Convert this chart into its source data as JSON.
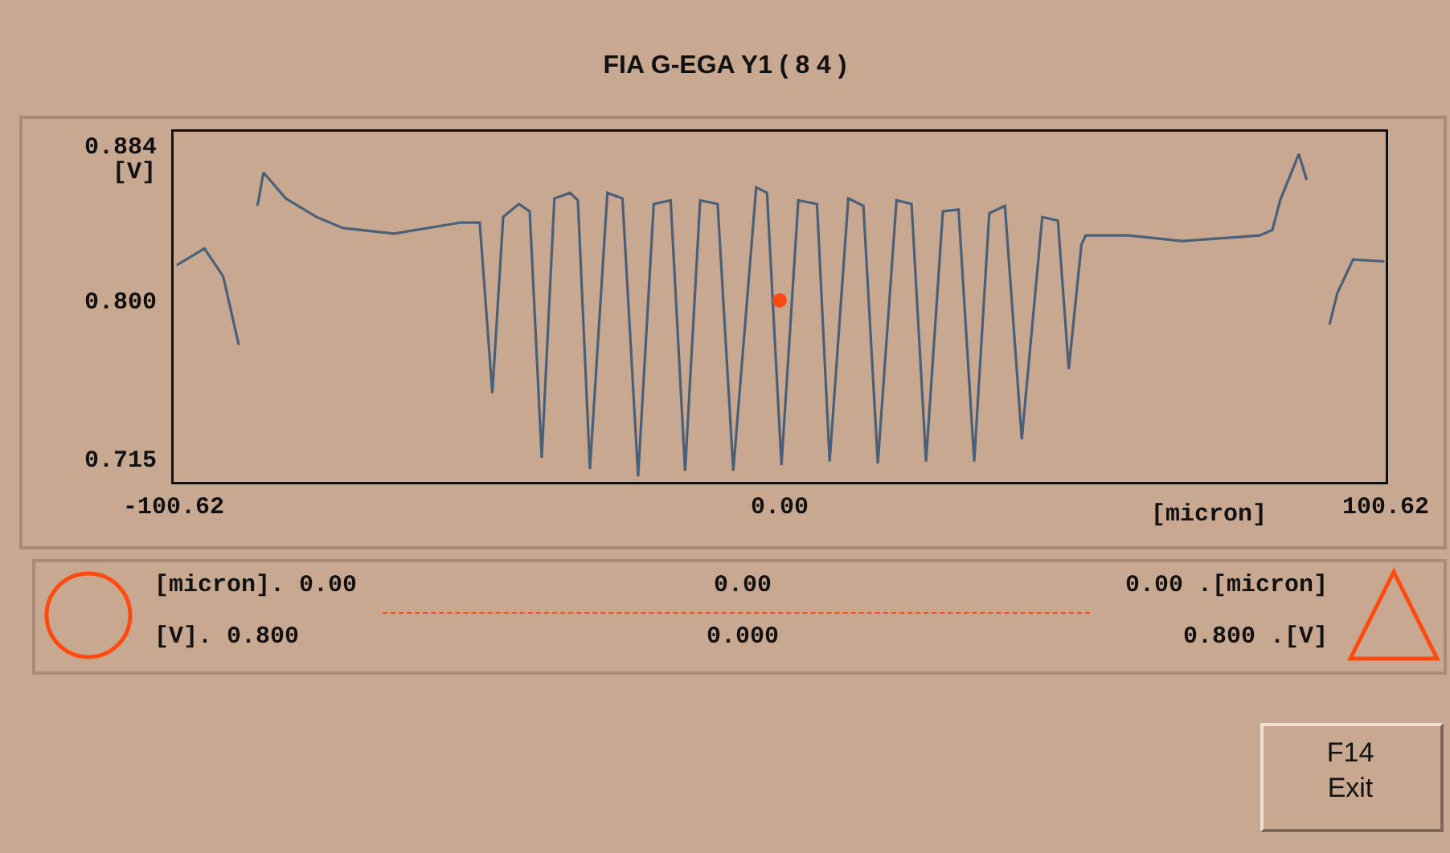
{
  "chart_data": {
    "type": "line",
    "title": "FIA G-EGA Y1 ( 8 4 )",
    "xlabel": "[micron]",
    "ylabel": "[V]",
    "xlim": [
      -100.62,
      100.62
    ],
    "xticks": [
      -100.62,
      {
        "value": 0,
        "label": "0.00"
      },
      100.62
    ],
    "ylim": [
      0.702,
      0.891
    ],
    "yticks": [
      0.884,
      {
        "value": 0.8,
        "label": "0.800"
      },
      0.715
    ],
    "series": [
      {
        "color": "#4a6078",
        "x": [
          -100.1,
          -95.5,
          -92.4,
          -89.8,
          -89.0,
          -88.0,
          -86.7,
          -85.7,
          -82.0,
          -76.9,
          -72.5,
          -64.0,
          -52.9,
          -49.8,
          -47.7,
          -45.9,
          -43.3,
          -41.5,
          -39.5,
          -37.4,
          -34.8,
          -33.5,
          -31.5,
          -28.6,
          -26.1,
          -23.5,
          -20.9,
          -18.1,
          -15.7,
          -13.2,
          -10.3,
          -7.7,
          -3.9,
          -2.1,
          0.3,
          3.1,
          6.2,
          8.3,
          11.4,
          13.9,
          16.3,
          19.4,
          21.9,
          24.3,
          27.1,
          29.7,
          32.3,
          34.8,
          37.4,
          40.2,
          43.6,
          46.2,
          48.0,
          50.1,
          50.8,
          58.0,
          66.8,
          79.7,
          81.8,
          83.1,
          86.2,
          87.5,
          88.2,
          89.8,
          91.3,
          92.6,
          95.2,
          100.4
        ],
        "values": [
          0.819,
          0.828,
          0.813,
          0.776,
          null,
          null,
          0.851,
          0.869,
          0.855,
          0.845,
          0.839,
          0.836,
          0.842,
          0.842,
          0.75,
          0.845,
          0.852,
          0.848,
          0.715,
          0.855,
          0.858,
          0.854,
          0.709,
          0.858,
          0.855,
          0.705,
          0.852,
          0.854,
          0.708,
          0.854,
          0.852,
          0.708,
          0.861,
          0.858,
          0.711,
          0.854,
          0.852,
          0.713,
          0.855,
          0.851,
          0.712,
          0.854,
          0.852,
          0.713,
          0.848,
          0.849,
          0.713,
          0.847,
          0.851,
          0.725,
          0.845,
          0.843,
          0.763,
          0.83,
          0.835,
          0.835,
          0.832,
          0.835,
          0.838,
          0.854,
          0.879,
          0.865,
          null,
          null,
          0.787,
          0.804,
          0.822,
          0.821
        ]
      },
      {
        "type": "scatter",
        "color": "#ff4a10",
        "x": [
          0
        ],
        "values": [
          0.8
        ]
      }
    ],
    "annotations": [
      "[micron]. 0.00",
      "0.00",
      "0.00 .[micron]",
      "[V]. 0.800",
      "0.000",
      "0.800 .[V]",
      "F14\nExit"
    ]
  }
}
